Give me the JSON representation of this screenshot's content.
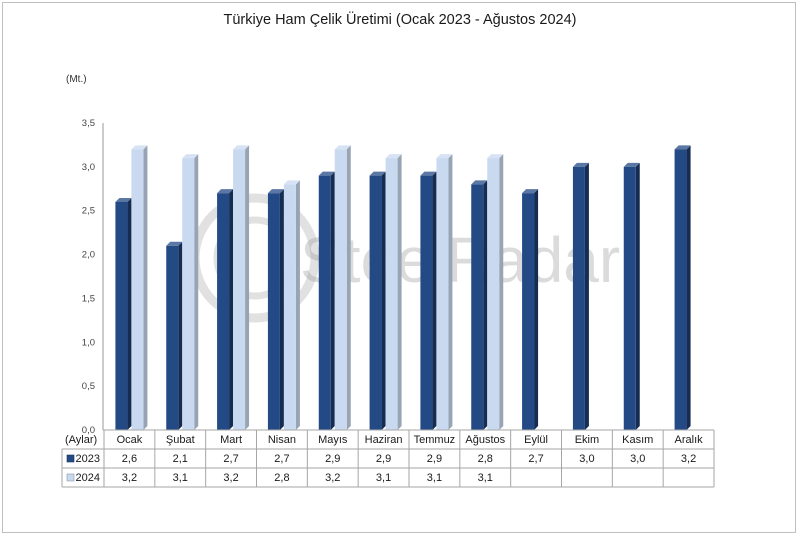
{
  "chart_data": {
    "type": "bar",
    "title": "Türkiye Ham Çelik Üretimi (Ocak 2023 - Ağustos 2024)",
    "ylabel": "(Mt.)",
    "xlabel": "(Aylar)",
    "ylim": [
      0,
      3.5
    ],
    "yticks": [
      "0,0",
      "0,5",
      "1,0",
      "1,5",
      "2,0",
      "2,5",
      "3,0",
      "3,5"
    ],
    "categories": [
      "Ocak",
      "Şubat",
      "Mart",
      "Nisan",
      "Mayıs",
      "Haziran",
      "Temmuz",
      "Ağustos",
      "Eylül",
      "Ekim",
      "Kasım",
      "Aralık"
    ],
    "series": [
      {
        "name": "2023",
        "color": "#244a86",
        "values": [
          2.6,
          2.1,
          2.7,
          2.7,
          2.9,
          2.9,
          2.9,
          2.8,
          2.7,
          3.0,
          3.0,
          3.2
        ],
        "labels": [
          "2,6",
          "2,1",
          "2,7",
          "2,7",
          "2,9",
          "2,9",
          "2,9",
          "2,8",
          "2,7",
          "3,0",
          "3,0",
          "3,2"
        ]
      },
      {
        "name": "2024",
        "color": "#c9daf0",
        "values": [
          3.2,
          3.1,
          3.2,
          2.8,
          3.2,
          3.1,
          3.1,
          3.1,
          null,
          null,
          null,
          null
        ],
        "labels": [
          "3,2",
          "3,1",
          "3,2",
          "2,8",
          "3,2",
          "3,1",
          "3,1",
          "3,1",
          "",
          "",
          "",
          ""
        ]
      }
    ],
    "grid": false,
    "legend": "data-table",
    "watermark": "SteelRadar"
  }
}
